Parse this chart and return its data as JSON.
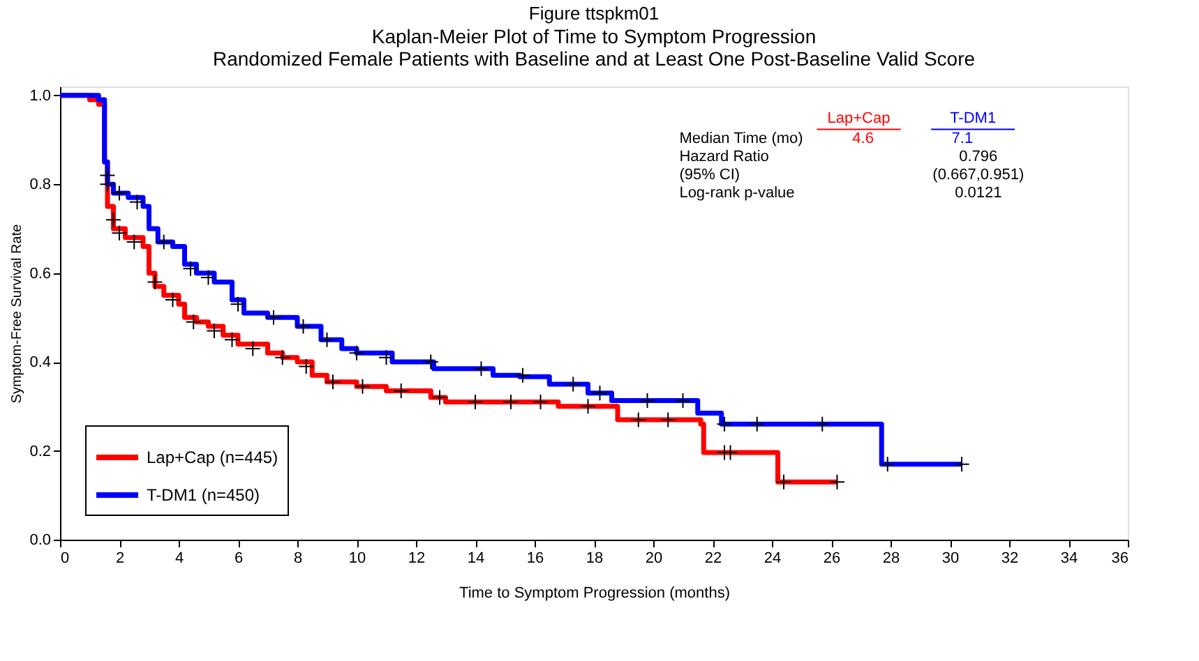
{
  "chart_data": {
    "type": "step",
    "title": "Figure ttspkm01",
    "subtitle": "Kaplan-Meier Plot of Time to Symptom Progression\nRandomized Female Patients with Baseline and at Least One Post-Baseline Valid Score",
    "xlabel": "Time to Symptom Progression (months)",
    "ylabel": "Symptom-Free Survival Rate",
    "xlim": [
      0,
      36
    ],
    "xticks": [
      0,
      2,
      4,
      6,
      8,
      10,
      12,
      14,
      16,
      18,
      20,
      22,
      24,
      26,
      28,
      30,
      32,
      34,
      36
    ],
    "ylim": [
      0,
      1.02
    ],
    "yticks": [
      {
        "value": 0,
        "label": "0.0"
      },
      {
        "value": 0.2,
        "label": "0.2"
      },
      {
        "value": 0.4,
        "label": "0.4"
      },
      {
        "value": 0.6,
        "label": "0.6"
      },
      {
        "value": 0.8,
        "label": "0.8"
      },
      {
        "value": 1,
        "label": "1.0"
      }
    ],
    "grid": false,
    "legend": "bottom left",
    "line_style": "solid",
    "annotations": [
      "Lap+Cap",
      "T-DM1",
      "Median Time (mo)",
      "4.6",
      "7.1",
      "Hazard Ratio",
      "0.796",
      "(95% CI)",
      "(0.667,0.951)",
      "Log-rank p-value",
      "0.0121"
    ],
    "series": [
      {
        "name": "Lap+Cap (n=445)",
        "color": "#ff0000",
        "x": [
          0,
          1.0,
          1.3,
          1.5,
          1.6,
          1.8,
          2.2,
          2.8,
          3.0,
          3.2,
          3.5,
          4.0,
          4.2,
          4.6,
          5.0,
          5.5,
          6.0,
          7.0,
          7.5,
          8.0,
          8.5,
          9.0,
          10,
          11,
          12.5,
          13,
          16.8,
          18.8,
          21.6,
          21.7,
          24.2,
          26.2
        ],
        "values": [
          1.0,
          0.99,
          0.98,
          0.85,
          0.75,
          0.7,
          0.68,
          0.66,
          0.6,
          0.57,
          0.55,
          0.53,
          0.5,
          0.49,
          0.48,
          0.46,
          0.44,
          0.42,
          0.41,
          0.4,
          0.37,
          0.355,
          0.345,
          0.335,
          0.32,
          0.31,
          0.3,
          0.27,
          0.26,
          0.196,
          0.13,
          0.13
        ]
      },
      {
        "name": "T-DM1 (n=450)",
        "color": "#0000ff",
        "x": [
          0,
          1.3,
          1.5,
          1.6,
          1.8,
          2.3,
          2.8,
          3.0,
          3.3,
          3.8,
          4.2,
          4.6,
          5.2,
          5.8,
          6.2,
          7,
          8,
          8.8,
          9.5,
          10,
          11.2,
          12.6,
          14.6,
          15.5,
          16.5,
          17.8,
          18.6,
          21.5,
          22.3,
          27.7,
          30.4
        ],
        "values": [
          1.0,
          0.99,
          0.85,
          0.8,
          0.78,
          0.77,
          0.75,
          0.7,
          0.67,
          0.66,
          0.62,
          0.6,
          0.58,
          0.54,
          0.51,
          0.5,
          0.48,
          0.45,
          0.43,
          0.42,
          0.4,
          0.385,
          0.37,
          0.367,
          0.35,
          0.33,
          0.313,
          0.285,
          0.26,
          0.17,
          0.17
        ]
      },
      {
        "type": "scatter",
        "marker": "cross",
        "color": "#000000",
        "x": [
          1.6,
          1.8,
          2.0,
          2.5,
          3.2,
          3.8,
          4.5,
          5.2,
          5.8,
          6.5,
          7.5,
          8.3,
          9.2,
          10.2,
          11.5,
          12.8,
          14,
          15.2,
          16.2,
          17.8,
          19.5,
          20.5,
          22.4,
          22.6,
          24.4,
          26.2
        ],
        "values": [
          0.8,
          0.72,
          0.69,
          0.67,
          0.58,
          0.54,
          0.49,
          0.47,
          0.45,
          0.43,
          0.41,
          0.39,
          0.355,
          0.345,
          0.335,
          0.32,
          0.31,
          0.31,
          0.31,
          0.3,
          0.27,
          0.27,
          0.196,
          0.196,
          0.13,
          0.13
        ]
      },
      {
        "type": "scatter",
        "marker": "cross",
        "color": "#000000",
        "x": [
          1.6,
          2.0,
          2.6,
          3.5,
          4.4,
          5.0,
          6.0,
          7.2,
          8.2,
          9.0,
          10,
          11,
          12.5,
          14.2,
          15.6,
          17.3,
          18.2,
          19.8,
          21.0,
          22.4,
          23.5,
          25.7,
          27.9,
          30.4
        ],
        "values": [
          0.82,
          0.78,
          0.76,
          0.67,
          0.61,
          0.59,
          0.53,
          0.5,
          0.48,
          0.45,
          0.42,
          0.41,
          0.4,
          0.385,
          0.37,
          0.35,
          0.33,
          0.313,
          0.313,
          0.26,
          0.26,
          0.26,
          0.17,
          0.17
        ]
      }
    ]
  }
}
